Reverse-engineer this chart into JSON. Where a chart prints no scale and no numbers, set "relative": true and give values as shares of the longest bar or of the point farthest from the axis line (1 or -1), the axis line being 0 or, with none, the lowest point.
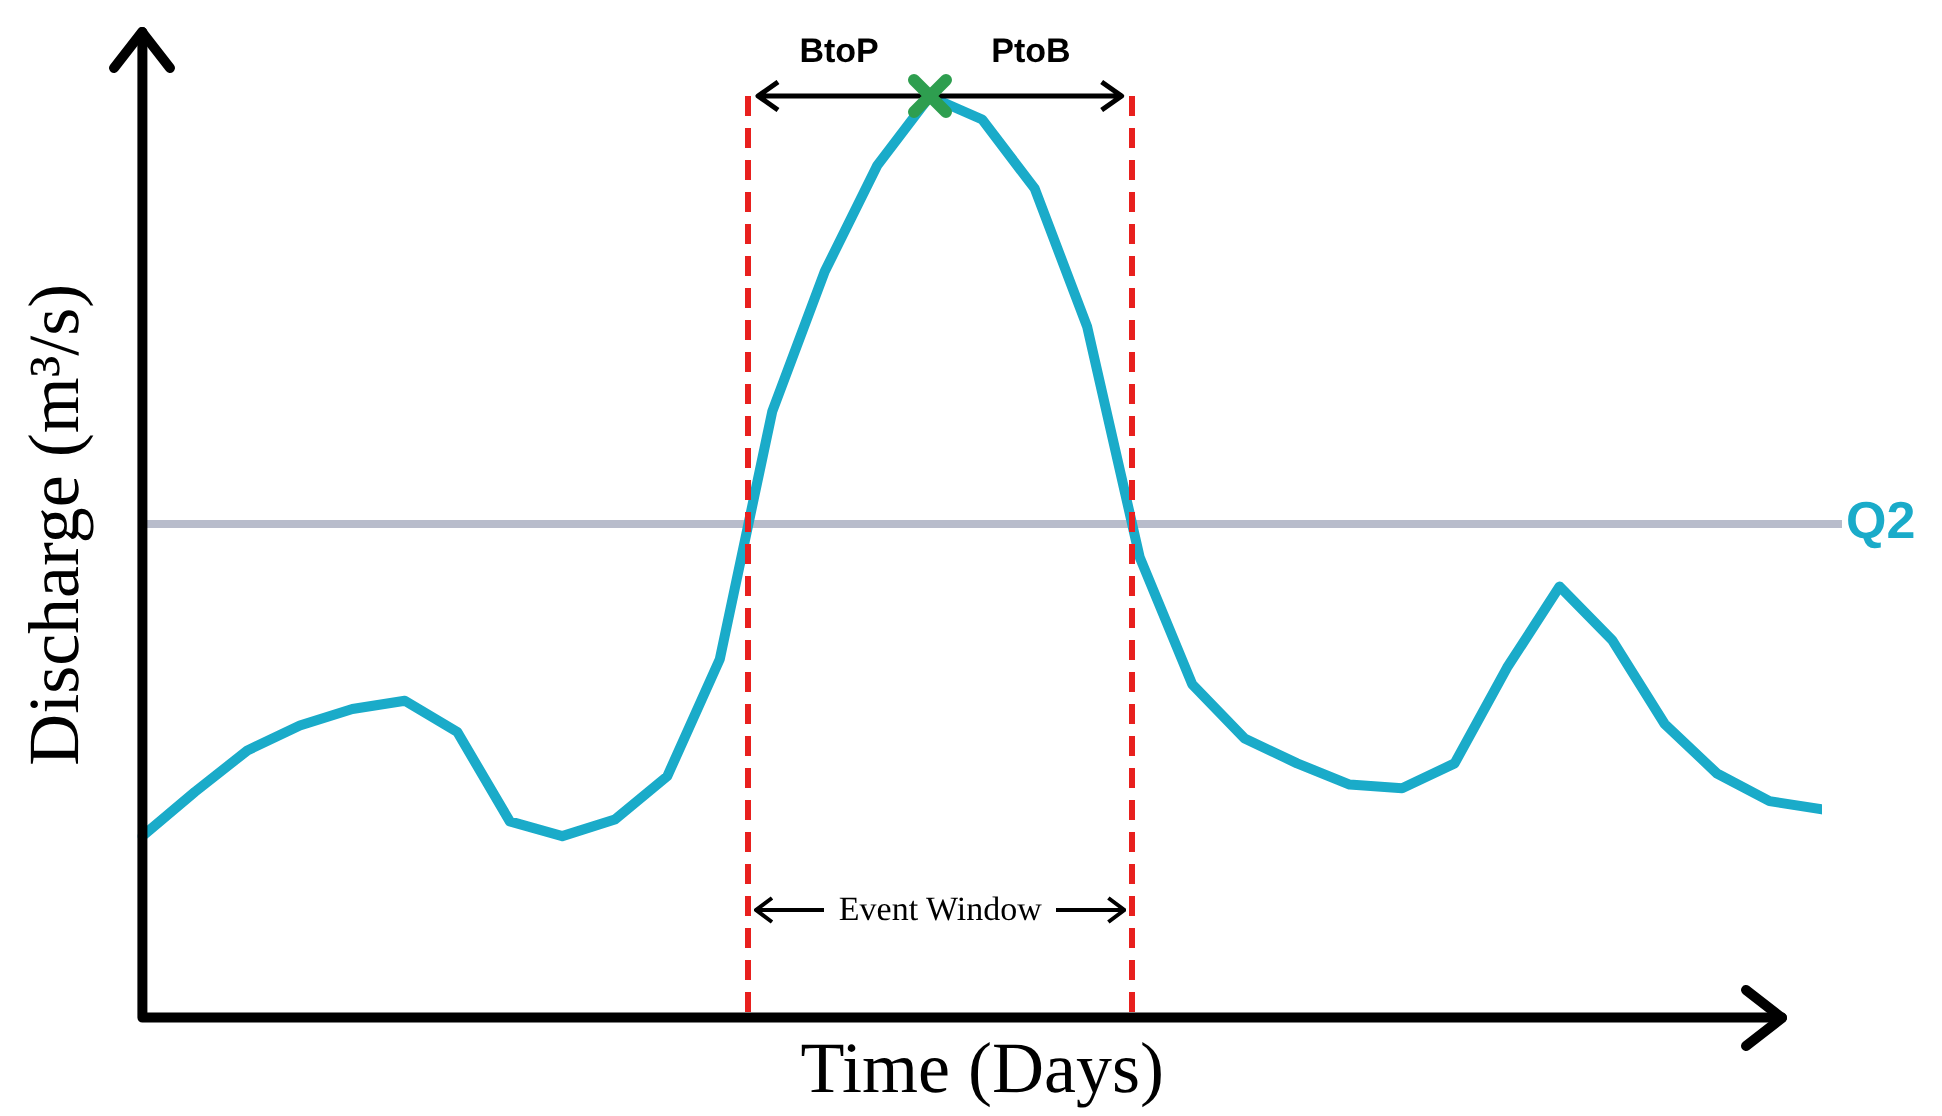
{
  "chart_data": {
    "type": "line",
    "relative": true,
    "xlabel": "Time (Days)",
    "ylabel": "Discharge (m³/s)",
    "categories": [
      null,
      null,
      null,
      null,
      null,
      null,
      null,
      null,
      null,
      null,
      null,
      null,
      null,
      null,
      null,
      null,
      null,
      null,
      null,
      null,
      null,
      null,
      null,
      null,
      null,
      null,
      null,
      null,
      null,
      null,
      null,
      null,
      null
    ],
    "grid": false,
    "legend": false,
    "marker": "none",
    "line_style": "solid",
    "series": [
      {
        "color": "#1aabc9",
        "values": [
          0.197,
          0.245,
          0.29,
          0.317,
          0.335,
          0.344,
          0.31,
          0.213,
          0.197,
          0.215,
          0.262,
          0.389,
          0.658,
          0.81,
          0.925,
          1,
          0.975,
          0.9,
          0.75,
          0.5,
          0.362,
          0.303,
          0.276,
          0.253,
          0.249,
          0.276,
          0.38,
          0.468,
          0.41,
          0.319,
          0.265,
          0.235,
          0.226
        ]
      }
    ],
    "ref_lines": [
      {
        "axis": "y",
        "value": 0.536,
        "label": "Q2",
        "color": "#b8bccb",
        "line_style": "solid"
      }
    ],
    "annotations": [
      "BtoP",
      "PtoB",
      "Event Window"
    ]
  }
}
